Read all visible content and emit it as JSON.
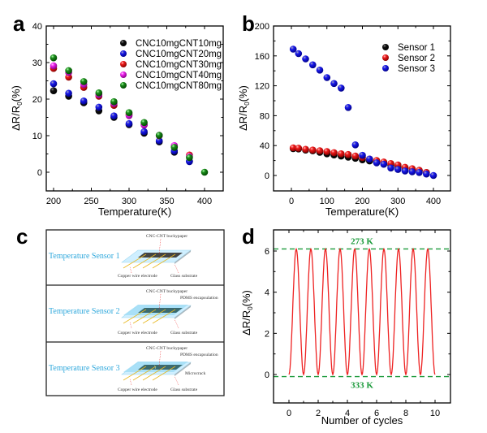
{
  "figure": {
    "panels": [
      "a",
      "b",
      "c",
      "d"
    ]
  },
  "colors": {
    "black": "#111111",
    "blue": "#1a1aee",
    "red": "#ee1a1a",
    "magenta": "#ee22ee",
    "green": "#1a8a1a",
    "line_red": "#ee2222",
    "dash_green": "#1a9a3a",
    "diagram_title": "#2fa8dc"
  },
  "chart_data": [
    {
      "panel": "a",
      "type": "scatter",
      "title": "",
      "xlabel": "Temperature(K)",
      "ylabel": "ΔR/R0(%)",
      "xlim": [
        190,
        420
      ],
      "ylim": [
        -5,
        40
      ],
      "xticks": [
        200,
        250,
        300,
        350,
        400
      ],
      "yticks": [
        0,
        10,
        20,
        30,
        40
      ],
      "grid": false,
      "legend_position": "top-right",
      "series": [
        {
          "name": "CNC10mgCNT10mg",
          "color": "black",
          "x": [
            200,
            220,
            240,
            260,
            280,
            300,
            320,
            340,
            360,
            380
          ],
          "y": [
            22.3,
            20.8,
            19.0,
            16.8,
            15.0,
            13.0,
            10.7,
            8.3,
            5.5,
            3.0
          ]
        },
        {
          "name": "CNC10mgCNT20mg",
          "color": "blue",
          "x": [
            200,
            220,
            240,
            260,
            280,
            300,
            320,
            340,
            360,
            380
          ],
          "y": [
            24.2,
            21.6,
            19.5,
            17.8,
            15.4,
            13.3,
            11.1,
            8.6,
            5.8,
            2.9
          ]
        },
        {
          "name": "CNC10mgCNT30mg",
          "color": "red",
          "x": [
            200,
            220,
            240,
            260,
            280,
            300,
            320,
            340,
            360,
            380
          ],
          "y": [
            28.4,
            26.0,
            23.2,
            20.8,
            18.3,
            15.8,
            13.0,
            10.0,
            7.0,
            4.7
          ]
        },
        {
          "name": "CNC10mgCNT40mg",
          "color": "magenta",
          "x": [
            200,
            220,
            240,
            260,
            280,
            300,
            320,
            340,
            360,
            380
          ],
          "y": [
            29.1,
            27.3,
            24.0,
            21.2,
            18.8,
            15.5,
            12.9,
            10.1,
            7.3,
            4.3
          ]
        },
        {
          "name": "CNC10mgCNT80mg",
          "color": "green",
          "x": [
            200,
            220,
            240,
            260,
            280,
            300,
            320,
            340,
            360,
            380,
            400
          ],
          "y": [
            31.3,
            27.8,
            24.8,
            21.7,
            19.3,
            16.3,
            13.6,
            10.1,
            6.8,
            4.0,
            0.0
          ]
        }
      ]
    },
    {
      "panel": "b",
      "type": "scatter",
      "title": "",
      "xlabel": "Temperature(K)",
      "ylabel": "ΔR/R0(%)",
      "xlim": [
        -50,
        450
      ],
      "ylim": [
        -20,
        200
      ],
      "xticks": [
        0,
        100,
        200,
        300,
        400
      ],
      "yticks": [
        0,
        40,
        80,
        120,
        160,
        200
      ],
      "grid": false,
      "legend_position": "top-right",
      "series": [
        {
          "name": "Sensor 1",
          "color": "black",
          "x": [
            5,
            20,
            40,
            60,
            80,
            100,
            120,
            140,
            160,
            180,
            200,
            220,
            240,
            260,
            280,
            300,
            320,
            340,
            360,
            380
          ],
          "y": [
            36,
            35.5,
            34,
            33,
            31,
            29,
            27.5,
            26,
            24.5,
            23,
            21,
            19.5,
            18,
            16,
            14,
            12,
            10,
            8,
            6,
            4
          ]
        },
        {
          "name": "Sensor 2",
          "color": "red",
          "x": [
            5,
            20,
            40,
            60,
            80,
            100,
            120,
            140,
            160,
            180,
            200,
            220,
            240,
            260,
            280,
            300,
            320,
            340,
            360,
            380
          ],
          "y": [
            37,
            36.5,
            35,
            34,
            33,
            32,
            30.5,
            29,
            28,
            26,
            24,
            22,
            20,
            18,
            16,
            14,
            11,
            9,
            7,
            4
          ]
        },
        {
          "name": "Sensor 3",
          "color": "blue",
          "x": [
            5,
            20,
            40,
            60,
            80,
            100,
            120,
            140,
            160,
            180,
            200,
            220,
            240,
            260,
            280,
            300,
            320,
            340,
            360,
            380,
            400
          ],
          "y": [
            169,
            163,
            156,
            148,
            141,
            131,
            123,
            117,
            91,
            41,
            27,
            22,
            17,
            15,
            10,
            8,
            6,
            5,
            4,
            2,
            0
          ]
        }
      ]
    },
    {
      "panel": "d",
      "type": "line",
      "title": "",
      "xlabel": "Number of cycles",
      "ylabel": "ΔR/R0(%)",
      "xlim": [
        -1,
        11
      ],
      "ylim": [
        -1,
        7
      ],
      "xticks": [
        0,
        2,
        4,
        6,
        8,
        10
      ],
      "yticks": [
        0,
        2,
        4,
        6
      ],
      "grid": false,
      "series": [
        {
          "name": "response",
          "color": "line_red",
          "cycles": 10,
          "min": 0,
          "max": 6.1,
          "description": "periodic oscillation, one peak per cycle at x = n + 0.5"
        }
      ],
      "reference_lines": [
        {
          "y": 6.1,
          "label": "273 K",
          "style": "dashed",
          "color": "dash_green",
          "label_position": "above"
        },
        {
          "y": -0.1,
          "label": "333 K",
          "style": "dashed",
          "color": "dash_green",
          "label_position": "below"
        }
      ]
    }
  ],
  "diagram": {
    "panel": "c",
    "rows": [
      {
        "title": "Temperature Sensor 1",
        "labels": {
          "buckypaper": "CNC-CNT buckypaper",
          "electrode": "Copper wire electrode",
          "substrate": "Glass substrate"
        },
        "encapsulated": false,
        "microcrack": false
      },
      {
        "title": "Temperature Sensor 2",
        "labels": {
          "buckypaper": "CNC-CNT buckypaper",
          "encapsulation": "PDMS encapsulation",
          "electrode": "Copper wire electrode",
          "substrate": "Glass substrate"
        },
        "encapsulated": true,
        "microcrack": false
      },
      {
        "title": "Temperature Sensor 3",
        "labels": {
          "buckypaper": "CNC-CNT buckypaper",
          "encapsulation": "PDMS encapsulation",
          "microcrack": "Microcrack",
          "electrode": "Copper wire electrode",
          "substrate": "Glass substrate"
        },
        "encapsulated": true,
        "microcrack": true
      }
    ]
  }
}
